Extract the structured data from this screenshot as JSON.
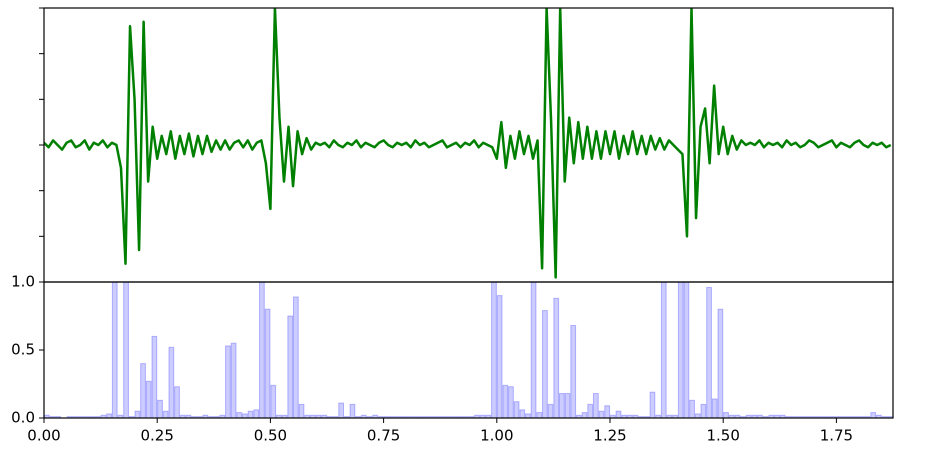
{
  "chart_data": [
    {
      "type": "line",
      "color": "#008000",
      "tick_labels": false,
      "xlim": [
        0,
        1.875
      ],
      "ylim": [
        -3,
        3
      ],
      "yticks": [
        -3,
        -2,
        -1,
        0,
        1,
        2,
        3
      ],
      "x": [
        0,
        0.01,
        0.02,
        0.03,
        0.04,
        0.05,
        0.06,
        0.07,
        0.08,
        0.09,
        0.1,
        0.11,
        0.12,
        0.13,
        0.14,
        0.15,
        0.16,
        0.17,
        0.18,
        0.19,
        0.2,
        0.21,
        0.22,
        0.23,
        0.24,
        0.25,
        0.26,
        0.27,
        0.28,
        0.29,
        0.3,
        0.31,
        0.32,
        0.33,
        0.34,
        0.35,
        0.36,
        0.37,
        0.38,
        0.39,
        0.4,
        0.41,
        0.42,
        0.43,
        0.44,
        0.45,
        0.46,
        0.47,
        0.48,
        0.49,
        0.5,
        0.51,
        0.52,
        0.53,
        0.54,
        0.55,
        0.56,
        0.57,
        0.58,
        0.59,
        0.6,
        0.61,
        0.62,
        0.63,
        0.64,
        0.65,
        0.66,
        0.67,
        0.68,
        0.69,
        0.7,
        0.71,
        0.72,
        0.73,
        0.74,
        0.75,
        0.76,
        0.77,
        0.78,
        0.79,
        0.8,
        0.81,
        0.82,
        0.83,
        0.84,
        0.85,
        0.86,
        0.87,
        0.88,
        0.89,
        0.9,
        0.91,
        0.92,
        0.93,
        0.94,
        0.95,
        0.96,
        0.97,
        0.98,
        0.99,
        1,
        1.01,
        1.02,
        1.03,
        1.04,
        1.05,
        1.06,
        1.07,
        1.08,
        1.09,
        1.1,
        1.11,
        1.12,
        1.13,
        1.14,
        1.15,
        1.16,
        1.17,
        1.18,
        1.19,
        1.2,
        1.21,
        1.22,
        1.23,
        1.24,
        1.25,
        1.26,
        1.27,
        1.28,
        1.29,
        1.3,
        1.31,
        1.32,
        1.33,
        1.34,
        1.35,
        1.36,
        1.37,
        1.38,
        1.39,
        1.4,
        1.41,
        1.42,
        1.43,
        1.44,
        1.45,
        1.46,
        1.47,
        1.48,
        1.49,
        1.5,
        1.51,
        1.52,
        1.53,
        1.54,
        1.55,
        1.56,
        1.57,
        1.58,
        1.59,
        1.6,
        1.61,
        1.62,
        1.63,
        1.64,
        1.65,
        1.66,
        1.67,
        1.68,
        1.69,
        1.7,
        1.71,
        1.72,
        1.73,
        1.74,
        1.75,
        1.76,
        1.77,
        1.78,
        1.79,
        1.8,
        1.81,
        1.82,
        1.83,
        1.84,
        1.85,
        1.86,
        1.87
      ],
      "values": [
        0.05,
        -0.05,
        0.1,
        0,
        -0.1,
        0.05,
        0.1,
        -0.05,
        0,
        0.1,
        -0.1,
        0.05,
        0,
        0.1,
        -0.05,
        0.05,
        0,
        -0.5,
        -2.6,
        2.6,
        1.0,
        -2.3,
        2.7,
        -0.8,
        0.4,
        -0.3,
        0.2,
        -0.2,
        0.3,
        -0.3,
        0.2,
        -0.2,
        0.25,
        -0.25,
        0.2,
        -0.2,
        0.2,
        -0.15,
        0.1,
        -0.1,
        0.1,
        -0.1,
        0.05,
        0.1,
        -0.05,
        0.1,
        -0.1,
        0.05,
        0.1,
        -0.4,
        -1.4,
        3.0,
        0.6,
        -0.8,
        0.4,
        -0.9,
        0.3,
        -0.2,
        0.15,
        -0.1,
        0.05,
        0,
        0.05,
        -0.05,
        0.1,
        0,
        -0.05,
        0.05,
        0,
        0.1,
        -0.05,
        0.05,
        0,
        -0.05,
        0.05,
        0.1,
        0,
        -0.05,
        0.05,
        0,
        0.05,
        -0.05,
        0.1,
        0,
        0.05,
        -0.05,
        0,
        0.05,
        0.1,
        -0.05,
        0,
        0.05,
        -0.05,
        0.05,
        0,
        0.1,
        -0.05,
        0.05,
        0,
        -0.05,
        -0.3,
        0.5,
        -0.5,
        0.2,
        -0.3,
        0.3,
        -0.2,
        0.2,
        -0.3,
        0.1,
        -2.7,
        3.0,
        0.5,
        -2.9,
        3.0,
        -0.8,
        0.6,
        -0.4,
        0.5,
        -0.3,
        0.4,
        -0.3,
        0.3,
        -0.3,
        0.3,
        -0.2,
        0.3,
        -0.3,
        0.2,
        -0.2,
        0.3,
        -0.2,
        0.2,
        -0.2,
        0.2,
        -0.1,
        0.15,
        -0.1,
        0.1,
        0,
        -0.1,
        -0.2,
        -2.0,
        3.0,
        -1.6,
        0.4,
        0.8,
        -0.4,
        1.3,
        -0.2,
        0.4,
        -0.2,
        0.2,
        -0.1,
        0.1,
        0,
        0.05,
        0,
        0.1,
        -0.05,
        0.05,
        0,
        0.05,
        -0.05,
        0.1,
        0,
        0.05,
        -0.05,
        0,
        0.1,
        0.05,
        -0.05,
        0,
        0.05,
        0.1,
        -0.05,
        0.05,
        0,
        -0.05,
        0.05,
        0.1,
        0,
        -0.05,
        0.05,
        0,
        0.05,
        -0.05,
        0
      ]
    },
    {
      "type": "histogram",
      "color": "#0000ff",
      "tick_labels": true,
      "xlim": [
        0,
        1.875
      ],
      "ylim": [
        0,
        1
      ],
      "xticks": [
        {
          "value": 0,
          "label": "0.00"
        },
        0.25,
        {
          "value": 0.5,
          "label": "0.50"
        },
        0.75,
        {
          "value": 1,
          "label": "1.00"
        },
        1.25,
        {
          "value": 1.5,
          "label": "1.50"
        },
        1.75
      ],
      "yticks": [
        {
          "value": 0,
          "label": "0.0"
        },
        0.5,
        {
          "value": 1,
          "label": "1.0"
        }
      ],
      "bins": [
        0,
        0.0125,
        0.025,
        0.0375,
        0.05,
        0.0625,
        0.075,
        0.0875,
        0.1,
        0.1125,
        0.125,
        0.1375,
        0.15,
        0.1625,
        0.175,
        0.1875,
        0.2,
        0.2125,
        0.225,
        0.2375,
        0.25,
        0.2625,
        0.275,
        0.2875,
        0.3,
        0.3125,
        0.325,
        0.3375,
        0.35,
        0.3625,
        0.375,
        0.3875,
        0.4,
        0.4125,
        0.425,
        0.4375,
        0.45,
        0.4625,
        0.475,
        0.4875,
        0.5,
        0.5125,
        0.525,
        0.5375,
        0.55,
        0.5625,
        0.575,
        0.5875,
        0.6,
        0.6125,
        0.625,
        0.6375,
        0.65,
        0.6625,
        0.675,
        0.6875,
        0.7,
        0.7125,
        0.725,
        0.7375,
        0.75,
        0.7625,
        0.775,
        0.7875,
        0.8,
        0.8125,
        0.825,
        0.8375,
        0.85,
        0.8625,
        0.875,
        0.8875,
        0.9,
        0.9125,
        0.925,
        0.9375,
        0.95,
        0.9625,
        0.975,
        0.9875,
        1,
        1.0125,
        1.025,
        1.0375,
        1.05,
        1.0625,
        1.075,
        1.0875,
        1.1,
        1.1125,
        1.125,
        1.1375,
        1.15,
        1.1625,
        1.175,
        1.1875,
        1.2,
        1.2125,
        1.225,
        1.2375,
        1.25,
        1.2625,
        1.275,
        1.2875,
        1.3,
        1.3125,
        1.325,
        1.3375,
        1.35,
        1.3625,
        1.375,
        1.3875,
        1.4,
        1.4125,
        1.425,
        1.4375,
        1.45,
        1.4625,
        1.475,
        1.4875,
        1.5,
        1.5125,
        1.525,
        1.5375,
        1.55,
        1.5625,
        1.575,
        1.5875,
        1.6,
        1.6125,
        1.625,
        1.6375,
        1.65,
        1.6625,
        1.675,
        1.6875,
        1.7,
        1.7125,
        1.725,
        1.7375,
        1.75,
        1.7625,
        1.775,
        1.7875,
        1.8,
        1.8125,
        1.825,
        1.8375,
        1.85,
        1.8625,
        1.875
      ],
      "values": [
        0.02,
        0.01,
        0.01,
        0,
        0.01,
        0.01,
        0.01,
        0.01,
        0.01,
        0.01,
        0.02,
        0.03,
        1.0,
        0.02,
        1.0,
        0.01,
        0.05,
        0.4,
        0.27,
        0.6,
        0.13,
        0.05,
        0.52,
        0.23,
        0.02,
        0.02,
        0.01,
        0.01,
        0.02,
        0.01,
        0.01,
        0.02,
        0.53,
        0.55,
        0.04,
        0.03,
        0.05,
        0.06,
        1.0,
        0.8,
        0.24,
        0.02,
        0.02,
        0.75,
        0.89,
        0.1,
        0.02,
        0.02,
        0.02,
        0.02,
        0.01,
        0.01,
        0.11,
        0.01,
        0.1,
        0.01,
        0.02,
        0.01,
        0.02,
        0.01,
        0.01,
        0.01,
        0.01,
        0.01,
        0.01,
        0.01,
        0.01,
        0.01,
        0.01,
        0.01,
        0.01,
        0.01,
        0.01,
        0.01,
        0.01,
        0.01,
        0.02,
        0.02,
        0.02,
        1.0,
        0.9,
        0.24,
        0.23,
        0.12,
        0.06,
        0.03,
        1.0,
        0.04,
        0.79,
        0.1,
        0.88,
        0.18,
        0.18,
        0.68,
        0.02,
        0.04,
        0.1,
        0.18,
        0.05,
        0.09,
        0.02,
        0.05,
        0.02,
        0.02,
        0.02,
        0.01,
        0.01,
        0.19,
        0.02,
        1.0,
        0.02,
        0.02,
        1.0,
        1.0,
        0.13,
        0.03,
        0.1,
        0.96,
        0.14,
        0.8,
        0.04,
        0.02,
        0.02,
        0.01,
        0.02,
        0.02,
        0.02,
        0.01,
        0.02,
        0.02,
        0.02,
        0.01,
        0.01,
        0.01,
        0.01,
        0.01,
        0.01,
        0.01,
        0.01,
        0.01,
        0.01,
        0.01,
        0.01,
        0.01,
        0.01,
        0.01,
        0.04,
        0.02,
        0.01,
        0.01
      ]
    }
  ]
}
